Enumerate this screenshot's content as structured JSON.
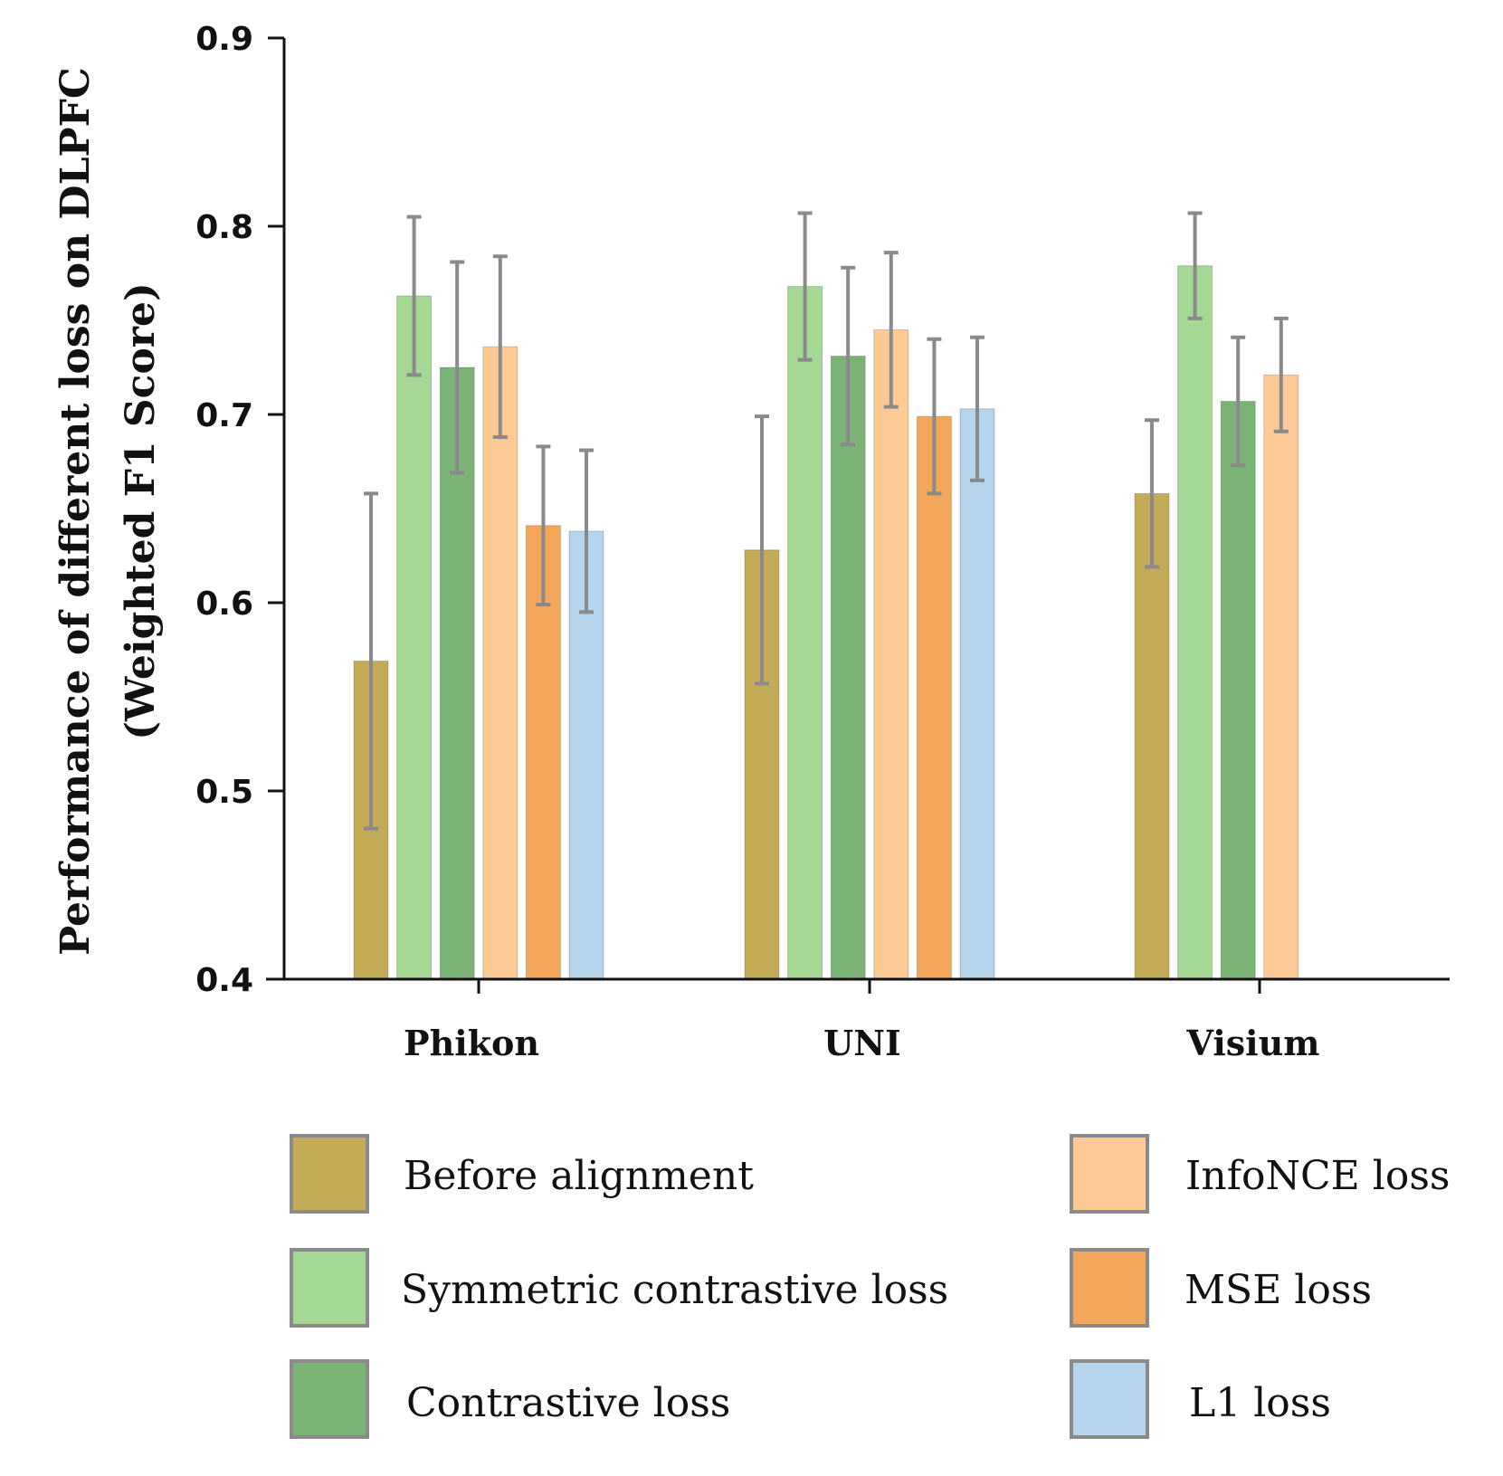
{
  "chart_data": {
    "type": "bar",
    "title": "",
    "xlabel": "",
    "ylabel_line1": "Performance of different loss on DLPFC",
    "ylabel_line2": "(Weighted F1 Score)",
    "ylim": [
      0.4,
      0.9
    ],
    "yticks": [
      {
        "value": 0.4,
        "label": "0.4"
      },
      {
        "value": 0.5,
        "label": "0.5"
      },
      {
        "value": 0.6,
        "label": "0.6"
      },
      {
        "value": 0.7,
        "label": "0.7"
      },
      {
        "value": 0.8,
        "label": "0.8"
      },
      {
        "value": 0.9,
        "label": "0.9"
      }
    ],
    "categories": [
      "Phikon",
      "UNI",
      "Visium"
    ],
    "series": [
      {
        "name": "Before alignment",
        "color": "#c4ab57",
        "values": [
          0.569,
          0.628,
          0.658
        ],
        "errors": [
          0.089,
          0.071,
          0.039
        ]
      },
      {
        "name": "Symmetric contrastive loss",
        "color": "#a3d895",
        "values": [
          0.763,
          0.768,
          0.779
        ],
        "errors": [
          0.042,
          0.039,
          0.028
        ]
      },
      {
        "name": "Contrastive loss",
        "color": "#7ab373",
        "values": [
          0.725,
          0.731,
          0.707
        ],
        "errors": [
          0.056,
          0.047,
          0.034
        ]
      },
      {
        "name": "InfoNCE loss",
        "color": "#fdca95",
        "values": [
          0.736,
          0.745,
          0.721
        ],
        "errors": [
          0.048,
          0.041,
          0.03
        ]
      },
      {
        "name": "MSE loss",
        "color": "#f4a75a",
        "values": [
          0.641,
          0.699,
          null
        ],
        "errors": [
          0.042,
          0.041,
          null
        ]
      },
      {
        "name": "L1 loss",
        "color": "#b5d5ec",
        "values": [
          0.638,
          0.703,
          null
        ],
        "errors": [
          0.043,
          0.038,
          null
        ]
      }
    ],
    "legend_position": "bottom",
    "error_bar_color": "#8a8a8a"
  }
}
